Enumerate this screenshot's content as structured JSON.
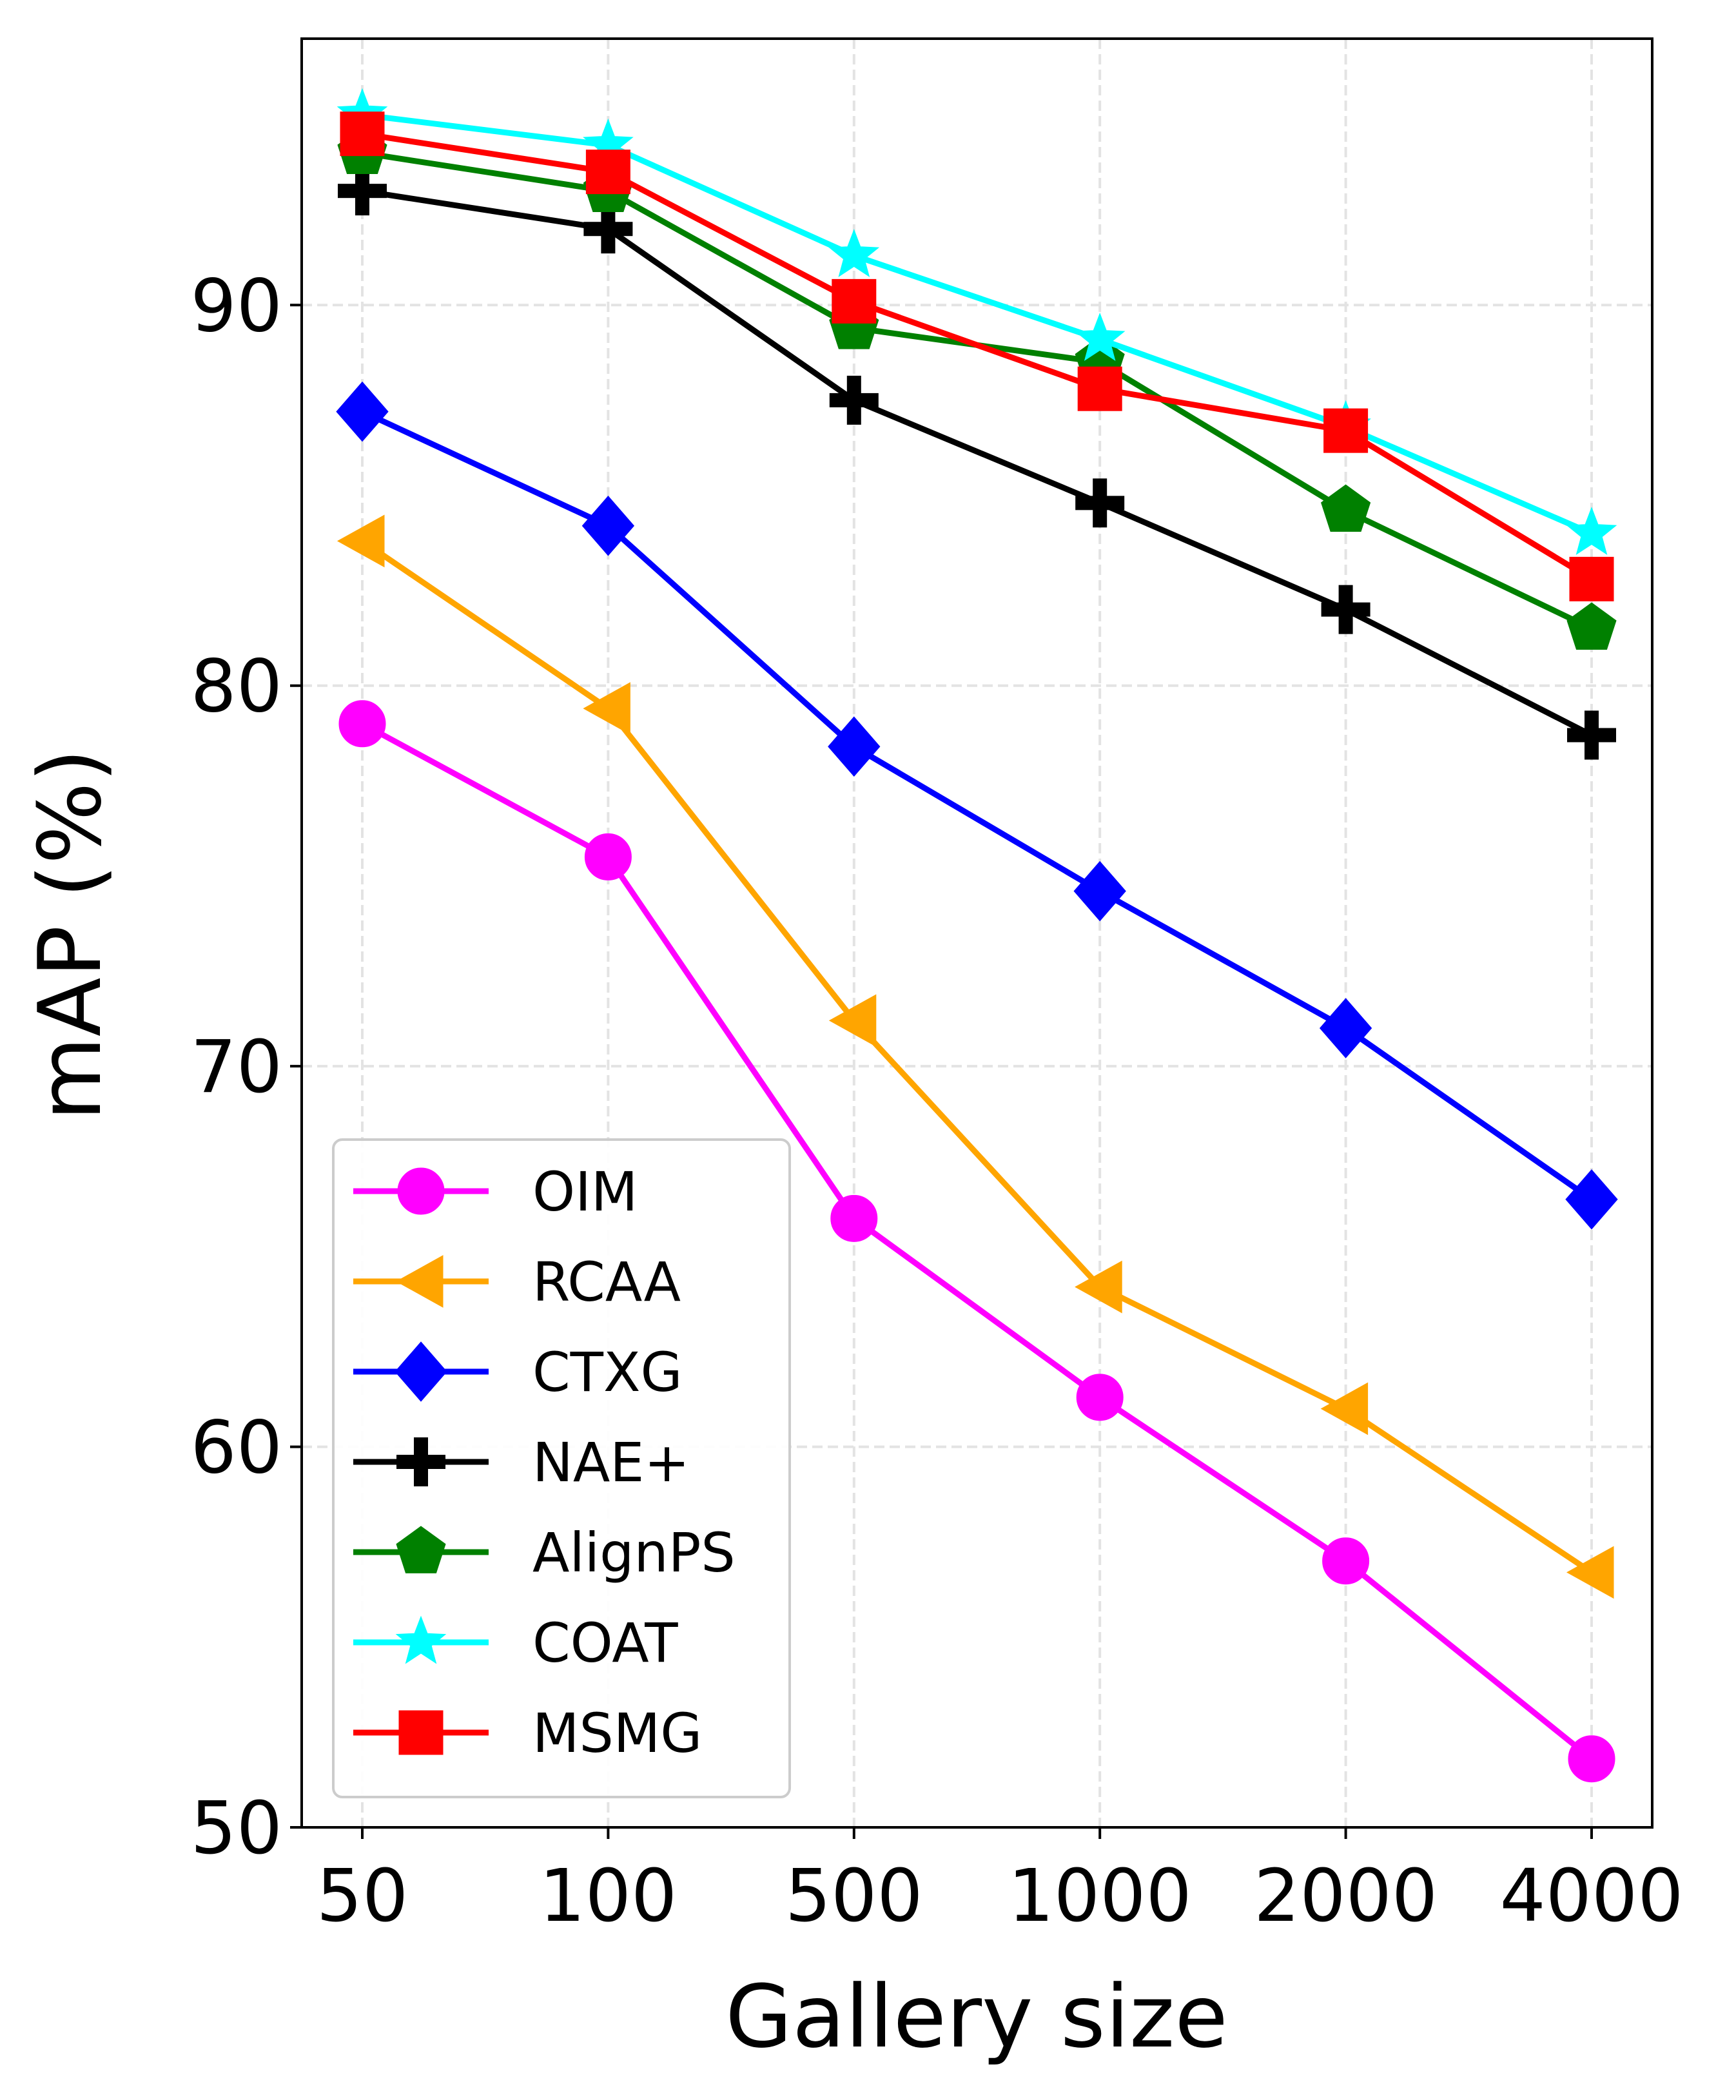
{
  "chart_data": {
    "type": "line",
    "categories": [
      "50",
      "100",
      "500",
      "1000",
      "2000",
      "4000"
    ],
    "xlabel": "Gallery size",
    "ylabel": "mAP (%)",
    "ylim": [
      50,
      97
    ],
    "yticks": [
      50,
      60,
      70,
      80,
      90
    ],
    "grid": true,
    "legend_position": "lower-left",
    "series": [
      {
        "name": "OIM",
        "color": "#ff00ff",
        "marker": "circle",
        "values": [
          79.0,
          75.5,
          66.0,
          61.3,
          57.0,
          51.8
        ]
      },
      {
        "name": "RCAA",
        "color": "#ffa500",
        "marker": "triangle-left",
        "values": [
          83.8,
          79.4,
          71.2,
          64.2,
          61.0,
          56.7
        ]
      },
      {
        "name": "CTXG",
        "color": "#0000ff",
        "marker": "diamond",
        "values": [
          87.2,
          84.2,
          78.4,
          74.6,
          71.0,
          66.5
        ]
      },
      {
        "name": "NAE+",
        "color": "#000000",
        "marker": "plus",
        "values": [
          93.0,
          92.0,
          87.5,
          84.8,
          82.0,
          78.7
        ]
      },
      {
        "name": "AlignPS",
        "color": "#008000",
        "marker": "pentagon",
        "values": [
          94.0,
          93.0,
          89.4,
          88.5,
          84.6,
          81.5
        ]
      },
      {
        "name": "COAT",
        "color": "#00ffff",
        "marker": "star",
        "values": [
          95.0,
          94.2,
          91.3,
          89.1,
          86.8,
          84.0
        ]
      },
      {
        "name": "MSMG",
        "color": "#ff0000",
        "marker": "square",
        "values": [
          94.5,
          93.5,
          90.1,
          87.8,
          86.7,
          82.8
        ]
      }
    ]
  }
}
